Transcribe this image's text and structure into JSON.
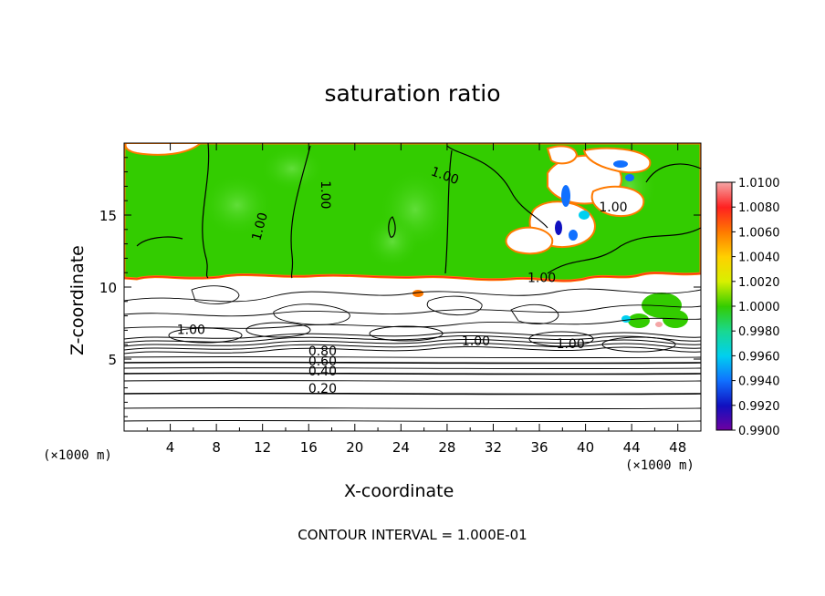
{
  "chart_data": {
    "type": "heatmap",
    "title": "saturation ratio",
    "xlabel": "X-coordinate",
    "ylabel": "Z-coordinate",
    "x_unit": "(×1000 m)",
    "xlim": [
      0,
      50
    ],
    "ylim": [
      0,
      20
    ],
    "x_ticks": [
      4,
      8,
      12,
      16,
      20,
      24,
      28,
      32,
      36,
      40,
      44,
      48
    ],
    "y_ticks": [
      5,
      10,
      15
    ],
    "colorbar": {
      "levels": [
        "1.0100",
        "1.0080",
        "1.0060",
        "1.0040",
        "1.0020",
        "1.0000",
        "0.9980",
        "0.9960",
        "0.9940",
        "0.9920",
        "0.9900"
      ],
      "colors": [
        "#f4a6a6",
        "#ff2020",
        "#ff7a00",
        "#ffd000",
        "#d8f000",
        "#33cc00",
        "#19d890",
        "#00d0f0",
        "#1070ff",
        "#1010c0",
        "#7000a0"
      ]
    },
    "contour_labels": [
      {
        "text": "1.00",
        "x": 11.8,
        "z": 14.2,
        "rot": -75
      },
      {
        "text": "1.00",
        "x": 27.8,
        "z": 17.7,
        "rot": 20
      },
      {
        "text": "1.00",
        "x": 17.4,
        "z": 16.4,
        "rot": 90
      },
      {
        "text": "1.00",
        "x": 42.4,
        "z": 15.5,
        "rot": 0
      },
      {
        "text": "1.00",
        "x": 36.2,
        "z": 10.6,
        "rot": 0
      },
      {
        "text": "1.00",
        "x": 5.8,
        "z": 7.0,
        "rot": 0
      },
      {
        "text": "1.00",
        "x": 30.5,
        "z": 6.2,
        "rot": 0
      },
      {
        "text": "1.00",
        "x": 38.7,
        "z": 6.0,
        "rot": 0
      },
      {
        "text": "0.80",
        "x": 17.2,
        "z": 5.5,
        "rot": 0
      },
      {
        "text": "0.60",
        "x": 17.2,
        "z": 4.8,
        "rot": 0
      },
      {
        "text": "0.40",
        "x": 17.2,
        "z": 4.1,
        "rot": 0
      },
      {
        "text": "0.20",
        "x": 17.2,
        "z": 2.9,
        "rot": 0
      }
    ],
    "footer": "CONTOUR INTERVAL = 1.000E-01"
  }
}
